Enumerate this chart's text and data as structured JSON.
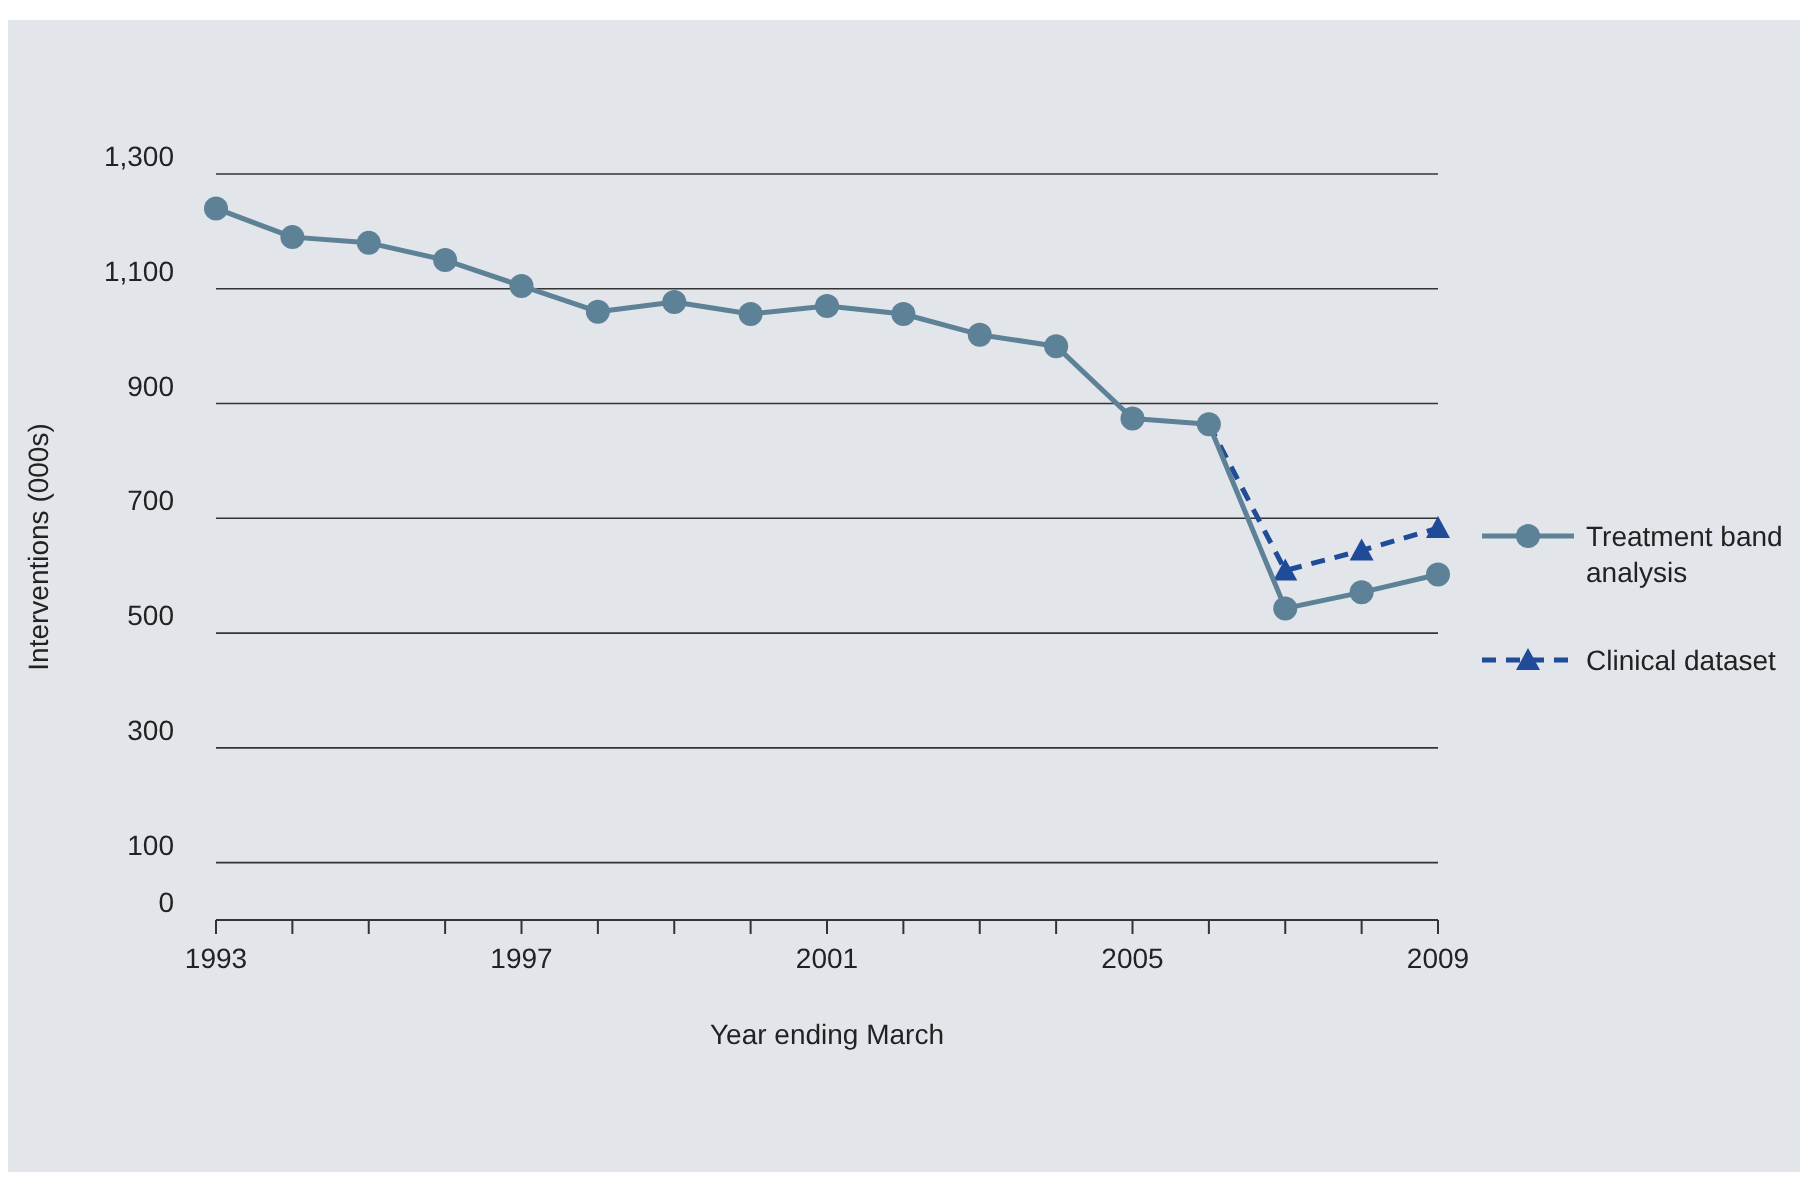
{
  "chart_data": {
    "type": "line",
    "xlabel": "Year ending March",
    "ylabel": "Interventions (000s)",
    "x": [
      1993,
      1994,
      1995,
      1996,
      1997,
      1998,
      1999,
      2000,
      2001,
      2002,
      2003,
      2004,
      2005,
      2006,
      2007,
      2008,
      2009
    ],
    "series": [
      {
        "name": "Treatment band analysis",
        "color": "#5d8196",
        "marker": "circle",
        "line_style": "solid",
        "values": [
          1240,
          1190,
          1180,
          1150,
          1105,
          1060,
          1077,
          1056,
          1070,
          1056,
          1020,
          1000,
          874,
          864,
          543,
          571,
          602
        ]
      },
      {
        "name": "Clinical dataset",
        "color": "#1f4b99",
        "marker": "triangle",
        "line_style": "dashed",
        "x": [
          2006,
          2007,
          2008,
          2009
        ],
        "values": [
          864,
          609,
          644,
          683
        ]
      }
    ],
    "xlim": [
      1993,
      2009
    ],
    "xticks": [
      1993,
      {
        "value": 1994,
        "label": null
      },
      {
        "value": 1995,
        "label": null
      },
      {
        "value": 1996,
        "label": null
      },
      1997,
      {
        "value": 1998,
        "label": null
      },
      {
        "value": 1999,
        "label": null
      },
      {
        "value": 2000,
        "label": null
      },
      2001,
      {
        "value": 2002,
        "label": null
      },
      {
        "value": 2003,
        "label": null
      },
      {
        "value": 2004,
        "label": null
      },
      2005,
      {
        "value": 2006,
        "label": null
      },
      {
        "value": 2007,
        "label": null
      },
      {
        "value": 2008,
        "label": null
      },
      2009
    ],
    "ylim": [
      0,
      1300
    ],
    "yticks": [
      0,
      100,
      300,
      500,
      700,
      900,
      {
        "value": 1100,
        "label": "1,100"
      },
      {
        "value": 1300,
        "label": "1,300"
      }
    ],
    "grid": "y",
    "legend": "right"
  }
}
